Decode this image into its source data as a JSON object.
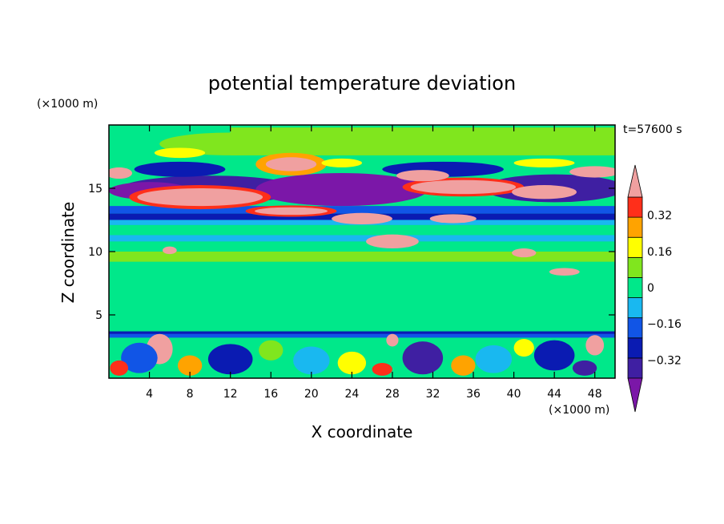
{
  "chart_data": {
    "type": "heatmap",
    "title": "potential temperature deviation",
    "xlabel": "X coordinate",
    "ylabel": "Z coordinate",
    "x_unit": "(×1000 m)",
    "y_unit": "(×1000 m)",
    "time_label": "t=57600 s",
    "xlim": [
      0,
      50
    ],
    "ylim": [
      0,
      20
    ],
    "x_ticks": [
      4,
      8,
      12,
      16,
      20,
      24,
      28,
      32,
      36,
      40,
      44,
      48
    ],
    "y_ticks": [
      5,
      10,
      15
    ],
    "colorbar": {
      "levels": [
        -0.4,
        -0.32,
        -0.24,
        -0.16,
        -0.08,
        0,
        0.08,
        0.16,
        0.24,
        0.32,
        0.4
      ],
      "tick_values": [
        0.32,
        0.16,
        0,
        -0.16,
        -0.32
      ],
      "tick_labels": [
        "0.32",
        "0.16",
        "0",
        "−0.16",
        "−0.32"
      ],
      "colors": [
        "#7b17a8",
        "#3f1fa2",
        "#0a1bb2",
        "#1155e6",
        "#19b8f0",
        "#00e88a",
        "#80e61e",
        "#ffff00",
        "#ffa300",
        "#ff2f1a",
        "#f0a0a0"
      ],
      "extend": "both"
    },
    "background_level_color": "#00e88a",
    "features": [
      {
        "kind": "band",
        "z": [
          13.0,
          13.6
        ],
        "x": [
          0,
          50
        ],
        "color": "#1155e6"
      },
      {
        "kind": "band",
        "z": [
          12.5,
          13.0
        ],
        "x": [
          0,
          50
        ],
        "color": "#0a1bb2"
      },
      {
        "kind": "band",
        "z": [
          12.1,
          12.5
        ],
        "x": [
          0,
          50
        ],
        "color": "#19b8f0"
      },
      {
        "kind": "band",
        "z": [
          10.8,
          11.3
        ],
        "x": [
          0,
          50
        ],
        "color": "#19b8f0"
      },
      {
        "kind": "band",
        "z": [
          3.2,
          3.6
        ],
        "x": [
          0,
          50
        ],
        "color": "#1155e6"
      },
      {
        "kind": "band",
        "z": [
          3.5,
          3.7
        ],
        "x": [
          0,
          50
        ],
        "color": "#0a1bb2"
      },
      {
        "kind": "band",
        "z": [
          17.6,
          19.8
        ],
        "x": [
          12,
          50
        ],
        "color": "#80e61e"
      },
      {
        "kind": "band",
        "z": [
          9.2,
          10.0
        ],
        "x": [
          0,
          50
        ],
        "color": "#80e61e"
      },
      {
        "kind": "blob",
        "cx": 10,
        "cz": 14.9,
        "rx": 9.0,
        "rz": 1.1,
        "color": "#3f1fa2"
      },
      {
        "kind": "blob",
        "cx": 23,
        "cz": 14.9,
        "rx": 8.5,
        "rz": 1.3,
        "color": "#7b17a8"
      },
      {
        "kind": "blob",
        "cx": 44,
        "cz": 15.0,
        "rx": 7.0,
        "rz": 1.1,
        "color": "#3f1fa2"
      },
      {
        "kind": "blob",
        "cx": 4,
        "cz": 14.8,
        "rx": 4.0,
        "rz": 0.7,
        "color": "#7b17a8"
      },
      {
        "kind": "blob",
        "cx": 7,
        "cz": 16.5,
        "rx": 4.5,
        "rz": 0.6,
        "color": "#0a1bb2"
      },
      {
        "kind": "blob",
        "cx": 33,
        "cz": 16.5,
        "rx": 6.0,
        "rz": 0.6,
        "color": "#0a1bb2"
      },
      {
        "kind": "blob",
        "cx": 18,
        "cz": 16.9,
        "rx": 3.5,
        "rz": 0.9,
        "color": "#ffa300"
      },
      {
        "kind": "blob",
        "cx": 18,
        "cz": 16.9,
        "rx": 2.5,
        "rz": 0.55,
        "color": "#f0a0a0"
      },
      {
        "kind": "blob",
        "cx": 9,
        "cz": 14.3,
        "rx": 7.0,
        "rz": 0.95,
        "color": "#ff2f1a"
      },
      {
        "kind": "blob",
        "cx": 9,
        "cz": 14.3,
        "rx": 6.2,
        "rz": 0.7,
        "color": "#f0a0a0"
      },
      {
        "kind": "blob",
        "cx": 35,
        "cz": 15.1,
        "rx": 6.0,
        "rz": 0.75,
        "color": "#ff2f1a"
      },
      {
        "kind": "blob",
        "cx": 35,
        "cz": 15.1,
        "rx": 5.2,
        "rz": 0.55,
        "color": "#f0a0a0"
      },
      {
        "kind": "blob",
        "cx": 43,
        "cz": 14.7,
        "rx": 3.2,
        "rz": 0.55,
        "color": "#f0a0a0"
      },
      {
        "kind": "blob",
        "cx": 48,
        "cz": 16.3,
        "rx": 2.5,
        "rz": 0.45,
        "color": "#f0a0a0"
      },
      {
        "kind": "blob",
        "cx": 31,
        "cz": 16.0,
        "rx": 2.6,
        "rz": 0.45,
        "color": "#f0a0a0"
      },
      {
        "kind": "blob",
        "cx": 1,
        "cz": 16.2,
        "rx": 1.3,
        "rz": 0.45,
        "color": "#f0a0a0"
      },
      {
        "kind": "blob",
        "cx": 18,
        "cz": 13.2,
        "rx": 4.5,
        "rz": 0.45,
        "color": "#ff2f1a"
      },
      {
        "kind": "blob",
        "cx": 18,
        "cz": 13.2,
        "rx": 3.6,
        "rz": 0.3,
        "color": "#f0a0a0"
      },
      {
        "kind": "blob",
        "cx": 25,
        "cz": 12.6,
        "rx": 3.0,
        "rz": 0.45,
        "color": "#f0a0a0"
      },
      {
        "kind": "blob",
        "cx": 34,
        "cz": 12.6,
        "rx": 2.3,
        "rz": 0.35,
        "color": "#f0a0a0"
      },
      {
        "kind": "blob",
        "cx": 28,
        "cz": 10.8,
        "rx": 2.6,
        "rz": 0.55,
        "color": "#f0a0a0"
      },
      {
        "kind": "blob",
        "cx": 41,
        "cz": 9.9,
        "rx": 1.2,
        "rz": 0.35,
        "color": "#f0a0a0"
      },
      {
        "kind": "blob",
        "cx": 6,
        "cz": 10.1,
        "rx": 0.7,
        "rz": 0.3,
        "color": "#f0a0a0"
      },
      {
        "kind": "blob",
        "cx": 45,
        "cz": 8.4,
        "rx": 1.5,
        "rz": 0.3,
        "color": "#f0a0a0"
      },
      {
        "kind": "blob",
        "cx": 12,
        "cz": 18.5,
        "rx": 7.0,
        "rz": 0.9,
        "color": "#80e61e"
      },
      {
        "kind": "blob",
        "cx": 7,
        "cz": 17.8,
        "rx": 2.5,
        "rz": 0.4,
        "color": "#ffff00"
      },
      {
        "kind": "blob",
        "cx": 23,
        "cz": 17.0,
        "rx": 2.0,
        "rz": 0.35,
        "color": "#ffff00"
      },
      {
        "kind": "blob",
        "cx": 43,
        "cz": 17.0,
        "rx": 3.0,
        "rz": 0.35,
        "color": "#ffff00"
      },
      {
        "kind": "blob",
        "cx": 5,
        "cz": 2.3,
        "rx": 1.3,
        "rz": 1.2,
        "color": "#f0a0a0"
      },
      {
        "kind": "blob",
        "cx": 48,
        "cz": 2.6,
        "rx": 0.9,
        "rz": 0.8,
        "color": "#f0a0a0"
      },
      {
        "kind": "blob",
        "cx": 28,
        "cz": 3.0,
        "rx": 0.6,
        "rz": 0.5,
        "color": "#f0a0a0"
      },
      {
        "kind": "blob",
        "cx": 3,
        "cz": 1.6,
        "rx": 1.8,
        "rz": 1.2,
        "color": "#1155e6"
      },
      {
        "kind": "blob",
        "cx": 12,
        "cz": 1.5,
        "rx": 2.2,
        "rz": 1.2,
        "color": "#0a1bb2"
      },
      {
        "kind": "blob",
        "cx": 20,
        "cz": 1.4,
        "rx": 1.8,
        "rz": 1.1,
        "color": "#19b8f0"
      },
      {
        "kind": "blob",
        "cx": 31,
        "cz": 1.6,
        "rx": 2.0,
        "rz": 1.3,
        "color": "#3f1fa2"
      },
      {
        "kind": "blob",
        "cx": 38,
        "cz": 1.5,
        "rx": 1.8,
        "rz": 1.1,
        "color": "#19b8f0"
      },
      {
        "kind": "blob",
        "cx": 44,
        "cz": 1.8,
        "rx": 2.0,
        "rz": 1.2,
        "color": "#0a1bb2"
      },
      {
        "kind": "blob",
        "cx": 8,
        "cz": 1.0,
        "rx": 1.2,
        "rz": 0.8,
        "color": "#ffa300"
      },
      {
        "kind": "blob",
        "cx": 24,
        "cz": 1.2,
        "rx": 1.4,
        "rz": 0.9,
        "color": "#ffff00"
      },
      {
        "kind": "blob",
        "cx": 35,
        "cz": 1.0,
        "rx": 1.2,
        "rz": 0.8,
        "color": "#ffa300"
      },
      {
        "kind": "blob",
        "cx": 16,
        "cz": 2.2,
        "rx": 1.2,
        "rz": 0.8,
        "color": "#80e61e"
      },
      {
        "kind": "blob",
        "cx": 41,
        "cz": 2.4,
        "rx": 1.0,
        "rz": 0.7,
        "color": "#ffff00"
      },
      {
        "kind": "blob",
        "cx": 1,
        "cz": 0.8,
        "rx": 0.9,
        "rz": 0.6,
        "color": "#ff2f1a"
      },
      {
        "kind": "blob",
        "cx": 27,
        "cz": 0.7,
        "rx": 1.0,
        "rz": 0.5,
        "color": "#ff2f1a"
      },
      {
        "kind": "blob",
        "cx": 47,
        "cz": 0.8,
        "rx": 1.2,
        "rz": 0.6,
        "color": "#3f1fa2"
      }
    ]
  }
}
